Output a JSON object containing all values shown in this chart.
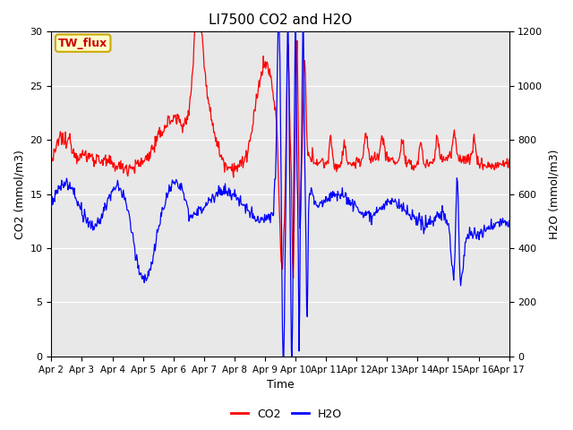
{
  "title": "LI7500 CO2 and H2O",
  "xlabel": "Time",
  "ylabel_left": "CO2 (mmol/m3)",
  "ylabel_right": "H2O (mmol/m3)",
  "ylim_left": [
    0,
    30
  ],
  "ylim_right": [
    0,
    1200
  ],
  "yticks_left": [
    0,
    5,
    10,
    15,
    20,
    25,
    30
  ],
  "yticks_right": [
    0,
    200,
    400,
    600,
    800,
    1000,
    1200
  ],
  "x_labels": [
    "Apr 2",
    "Apr 3",
    "Apr 4",
    "Apr 5",
    "Apr 6",
    "Apr 7",
    "Apr 8",
    "Apr 9",
    "Apr 10",
    "Apr 11",
    "Apr 12",
    "Apr 13",
    "Apr 14",
    "Apr 15",
    "Apr 16",
    "Apr 17"
  ],
  "co2_color": "#FF0000",
  "h2o_color": "#0000FF",
  "plot_bg_color": "#E8E8E8",
  "fig_bg_color": "#FFFFFF",
  "annotation_text": "TW_flux",
  "annotation_bg": "#FFFFCC",
  "annotation_border": "#CCAA00",
  "legend_co2": "CO2",
  "legend_h2o": "H2O",
  "title_fontsize": 11,
  "axis_label_fontsize": 9,
  "tick_fontsize": 8
}
